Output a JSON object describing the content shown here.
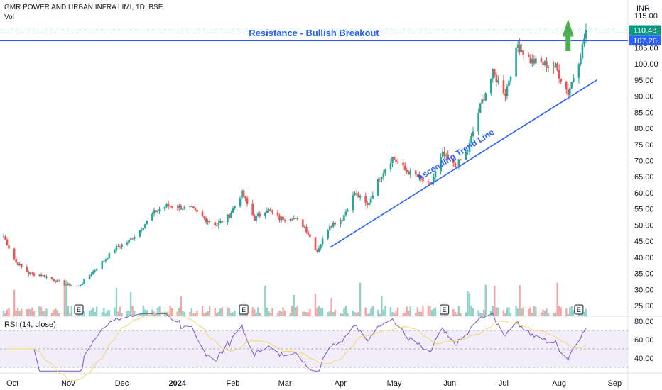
{
  "header": {
    "symbol_line": "GMR POWER AND URBAN INFRA LIMI, 1D, BSE",
    "vol_label": "Vol",
    "currency": "INR",
    "rsi_label": "RSI (14, close)"
  },
  "colors": {
    "up": "#26a69a",
    "down": "#ef5350",
    "vol_up": "#8fd3c8",
    "vol_down": "#f4a6a6",
    "trend": "#2962ff",
    "rsi": "#7e57c2",
    "rsi_ma": "#f2d56b",
    "rsi_band": "#ede7f6",
    "last_tag": "#089981",
    "res_tag": "#2962ff",
    "arrow": "#4caf50"
  },
  "chart_data": {
    "type": "candlestick",
    "price_axis": {
      "ticks": [
        "115.00",
        "110.00",
        "105.00",
        "100.00",
        "95.00",
        "90.00",
        "85.00",
        "80.00",
        "75.00",
        "70.00",
        "65.00",
        "60.00",
        "55.00",
        "50.00",
        "45.00",
        "40.00",
        "35.00",
        "30.00",
        "25.00"
      ],
      "min": 22,
      "max": 115
    },
    "time_axis": {
      "labels": [
        "Oct",
        "Nov",
        "Dec",
        "2024",
        "Feb",
        "Mar",
        "Apr",
        "May",
        "Jun",
        "Jul",
        "Aug",
        "Sep"
      ],
      "bold": "2024"
    },
    "last_price": "110.48",
    "resistance_price": "107.26",
    "resistance_label": "Resistance - Bullish Breakout",
    "trend_label": "Ascending Trend Line",
    "earnings_marker": "E",
    "earnings_dates": [
      "2023-11-07",
      "2024-02-07",
      "2024-05-29",
      "2024-08-12"
    ],
    "rsi": {
      "axis_ticks": [
        "80.00",
        "60.00",
        "40.00"
      ],
      "upper": 70,
      "middle": 50,
      "lower": 30
    },
    "closes": [
      [
        "2023-09-26",
        46.5
      ],
      [
        "2023-10-03",
        38.5
      ],
      [
        "2023-10-10",
        35.0
      ],
      [
        "2023-10-17",
        34.5
      ],
      [
        "2023-10-24",
        33.0
      ],
      [
        "2023-10-31",
        31.5
      ],
      [
        "2023-11-07",
        31.0
      ],
      [
        "2023-11-14",
        35.0
      ],
      [
        "2023-11-21",
        39.0
      ],
      [
        "2023-11-28",
        43.0
      ],
      [
        "2023-12-05",
        45.0
      ],
      [
        "2023-12-12",
        49.0
      ],
      [
        "2023-12-19",
        54.0
      ],
      [
        "2023-12-26",
        56.0
      ],
      [
        "2024-01-02",
        55.5
      ],
      [
        "2024-01-09",
        55.0
      ],
      [
        "2024-01-16",
        52.0
      ],
      [
        "2024-01-23",
        50.0
      ],
      [
        "2024-01-30",
        53.0
      ],
      [
        "2024-02-06",
        60.0
      ],
      [
        "2024-02-13",
        52.0
      ],
      [
        "2024-02-20",
        55.0
      ],
      [
        "2024-02-27",
        52.0
      ],
      [
        "2024-03-05",
        52.5
      ],
      [
        "2024-03-12",
        49.5
      ],
      [
        "2024-03-19",
        42.0
      ],
      [
        "2024-03-26",
        50.0
      ],
      [
        "2024-04-02",
        52.0
      ],
      [
        "2024-04-09",
        60.0
      ],
      [
        "2024-04-16",
        56.0
      ],
      [
        "2024-04-23",
        65.0
      ],
      [
        "2024-04-30",
        71.0
      ],
      [
        "2024-05-07",
        67.0
      ],
      [
        "2024-05-14",
        65.0
      ],
      [
        "2024-05-21",
        62.0
      ],
      [
        "2024-05-28",
        72.0
      ],
      [
        "2024-06-04",
        68.0
      ],
      [
        "2024-06-11",
        73.0
      ],
      [
        "2024-06-18",
        87.0
      ],
      [
        "2024-06-25",
        97.0
      ],
      [
        "2024-07-02",
        91.0
      ],
      [
        "2024-07-09",
        106.0
      ],
      [
        "2024-07-16",
        101.0
      ],
      [
        "2024-07-23",
        100.0
      ],
      [
        "2024-07-30",
        99.0
      ],
      [
        "2024-08-06",
        91.0
      ],
      [
        "2024-08-13",
        103.0
      ],
      [
        "2024-08-16",
        110.48
      ]
    ]
  }
}
